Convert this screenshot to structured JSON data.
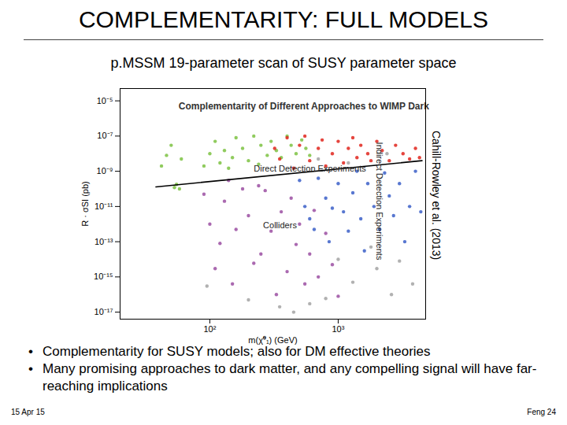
{
  "slide": {
    "title": "COMPLEMENTARITY: FULL MODELS",
    "subtitle": "p.MSSM 19-parameter scan of SUSY parameter space",
    "citation": "Cahill-Rowley et al. (2013)",
    "bullets": [
      "Complementarity for SUSY models; also for DM effective theories",
      "Many promising approaches to dark matter, and any compelling signal will have far-reaching implications"
    ],
    "footer_left": "15 Apr 15",
    "footer_right": "Feng 24"
  },
  "chart_data": {
    "type": "scatter",
    "title": "Complementarity of Different Approaches to WIMP Dark Matter",
    "annotations": [
      "Direct Detection Experiments",
      "Indirect Detection Experiments",
      "Colliders"
    ],
    "x_label": "m(χ̃⁰₁) (GeV)",
    "y_label": "R · σSI (pb)",
    "log": true,
    "grid": false,
    "xlim": [
      20,
      4800
    ],
    "ylim": [
      4e-18,
      5e-05
    ],
    "xticks": [
      {
        "value": 100,
        "label": "10²"
      },
      {
        "value": 1000,
        "label": "10³"
      }
    ],
    "yticks": [
      {
        "value": 1e-05,
        "label": "10⁻⁵"
      },
      {
        "value": 1e-07,
        "label": "10⁻⁷"
      },
      {
        "value": 1e-09,
        "label": "10⁻⁹"
      },
      {
        "value": 1e-11,
        "label": "10⁻¹¹"
      },
      {
        "value": 1e-13,
        "label": "10⁻¹³"
      },
      {
        "value": 1e-15,
        "label": "10⁻¹⁵"
      },
      {
        "value": 1e-17,
        "label": "10⁻¹⁷"
      }
    ],
    "series": [
      {
        "color": "#a3a3a3",
        "type": "scatter",
        "x": [
          95,
          200,
          350,
          600,
          1000,
          1300,
          2000,
          2600,
          3000,
          1800,
          3800,
          450,
          800,
          1200,
          2400,
          700
        ],
        "y": [
          3e-16,
          5e-17,
          2e-17,
          3e-17,
          1e-14,
          5e-16,
          3e-15,
          1e-16,
          8e-15,
          5e-14,
          4e-16,
          1e-17,
          6e-17,
          3e-09,
          1e-08,
          5e-09
        ]
      },
      {
        "color": "#7cc242",
        "type": "scatter",
        "x": [
          42,
          46,
          50,
          53,
          55,
          58,
          60,
          90,
          100,
          110,
          120,
          130,
          150,
          160,
          180,
          200,
          220,
          250,
          280,
          300,
          330,
          360,
          400,
          430,
          470,
          520,
          560,
          600,
          140,
          240
        ],
        "y": [
          2e-09,
          8e-09,
          3e-08,
          1.2e-10,
          1.8e-10,
          1e-10,
          5e-09,
          2e-09,
          1e-08,
          5e-08,
          3e-09,
          1.5e-08,
          6e-09,
          8e-08,
          2e-08,
          4e-09,
          1e-07,
          3e-08,
          8e-09,
          5e-08,
          1.5e-08,
          6e-09,
          1e-07,
          3e-08,
          1e-08,
          6e-08,
          2e-08,
          8e-09,
          1.5e-09,
          2.5e-09
        ]
      },
      {
        "color": "#e0241c",
        "type": "scatter",
        "x": [
          320,
          350,
          400,
          450,
          500,
          550,
          600,
          700,
          750,
          800,
          900,
          1000,
          1100,
          1200,
          1300,
          1400,
          1500,
          1700,
          1800,
          2000,
          2200,
          2500,
          2800,
          3200,
          3600,
          4000,
          4300
        ],
        "y": [
          2e-08,
          5e-09,
          8e-08,
          1.5e-09,
          3e-08,
          1e-07,
          4e-09,
          2e-08,
          6e-08,
          2e-09,
          1e-08,
          5e-08,
          3e-09,
          2e-08,
          8e-08,
          6e-09,
          3e-08,
          1e-08,
          4e-09,
          5e-08,
          1.5e-08,
          4e-09,
          3e-08,
          1e-08,
          5e-09,
          2e-08,
          6e-09
        ]
      },
      {
        "color": "#3b5fc8",
        "type": "scatter",
        "x": [
          500,
          550,
          600,
          650,
          700,
          800,
          850,
          900,
          1000,
          1100,
          1200,
          1300,
          1400,
          1500,
          1600,
          1700,
          1900,
          2100,
          2300,
          2500,
          2700,
          3000,
          3300,
          3600,
          4000,
          4400
        ],
        "y": [
          3e-10,
          1e-11,
          2e-12,
          5e-13,
          4e-10,
          3e-11,
          1e-13,
          8e-12,
          2e-10,
          5e-12,
          4e-13,
          6e-11,
          1e-09,
          2e-12,
          3e-14,
          2e-10,
          1e-11,
          5e-13,
          8e-10,
          4e-11,
          3e-12,
          2e-10,
          1e-13,
          1e-11,
          1e-09,
          5e-12
        ]
      },
      {
        "color": "#9b4fa2",
        "type": "scatter",
        "x": [
          90,
          100,
          110,
          120,
          130,
          150,
          160,
          180,
          200,
          220,
          250,
          270,
          300,
          330,
          360,
          400,
          430,
          470,
          500,
          550,
          600,
          650,
          700,
          800,
          900,
          1000,
          140,
          240
        ],
        "y": [
          5e-11,
          1e-12,
          3e-15,
          8e-14,
          2e-11,
          4e-16,
          5e-13,
          1e-10,
          3e-12,
          6e-15,
          2e-14,
          8e-11,
          4e-13,
          1e-16,
          5e-12,
          2e-15,
          3e-11,
          7e-14,
          1e-12,
          4e-16,
          2e-14,
          6e-12,
          1e-15,
          3e-13,
          5e-15,
          8e-17,
          3e-10,
          1.5e-10
        ]
      },
      {
        "color": "#000000",
        "type": "line",
        "x": [
          38,
          4500
        ],
        "y": [
          1.3e-10,
          4e-09
        ]
      }
    ]
  }
}
